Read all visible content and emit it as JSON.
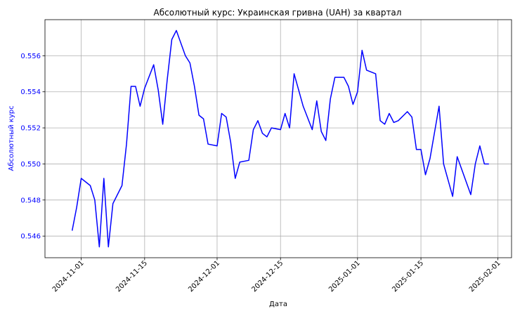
{
  "chart_data": {
    "type": "line",
    "title": "Абсолютный курс: Украинская гривна (UAH) за квартал",
    "xlabel": "Дата",
    "ylabel": "Абсолютный курс",
    "grid": true,
    "line_color": "#0000ff",
    "ylabel_color": "#0000ff",
    "xlim": [
      "2024-10-24",
      "2025-02-04"
    ],
    "ylim": [
      0.5448,
      0.558
    ],
    "x_ticks": [
      "2024-11-01",
      "2024-11-15",
      "2024-12-01",
      "2024-12-15",
      "2025-01-01",
      "2025-01-15",
      "2025-02-01"
    ],
    "y_ticks": [
      0.546,
      0.548,
      0.55,
      0.552,
      0.554,
      0.556
    ],
    "y_tick_labels": [
      "0.546",
      "0.548",
      "0.550",
      "0.552",
      "0.554",
      "0.556"
    ],
    "series": [
      {
        "x": [
          "2024-10-30",
          "2024-10-31",
          "2024-11-01",
          "2024-11-03",
          "2024-11-04",
          "2024-11-05",
          "2024-11-06",
          "2024-11-07",
          "2024-11-08",
          "2024-11-10",
          "2024-11-11",
          "2024-11-12",
          "2024-11-13",
          "2024-11-14",
          "2024-11-15",
          "2024-11-17",
          "2024-11-18",
          "2024-11-19",
          "2024-11-20",
          "2024-11-21",
          "2024-11-22",
          "2024-11-24",
          "2024-11-25",
          "2024-11-26",
          "2024-11-27",
          "2024-11-28",
          "2024-11-29",
          "2024-12-01",
          "2024-12-02",
          "2024-12-03",
          "2024-12-04",
          "2024-12-05",
          "2024-12-06",
          "2024-12-08",
          "2024-12-09",
          "2024-12-10",
          "2024-12-11",
          "2024-12-12",
          "2024-12-13",
          "2024-12-15",
          "2024-12-16",
          "2024-12-17",
          "2024-12-18",
          "2024-12-20",
          "2024-12-22",
          "2024-12-23",
          "2024-12-24",
          "2024-12-25",
          "2024-12-26",
          "2024-12-27",
          "2024-12-29",
          "2024-12-30",
          "2024-12-31",
          "2025-01-01",
          "2025-01-02",
          "2025-01-03",
          "2025-01-05",
          "2025-01-06",
          "2025-01-07",
          "2025-01-08",
          "2025-01-09",
          "2025-01-10",
          "2025-01-12",
          "2025-01-13",
          "2025-01-14",
          "2025-01-15",
          "2025-01-16",
          "2025-01-17",
          "2025-01-19",
          "2025-01-20",
          "2025-01-21",
          "2025-01-22",
          "2025-01-23",
          "2025-01-26",
          "2025-01-27",
          "2025-01-28",
          "2025-01-29",
          "2025-01-30"
        ],
        "y": [
          0.5463,
          0.5476,
          0.5492,
          0.5488,
          0.548,
          0.5454,
          0.5492,
          0.5454,
          0.5478,
          0.5488,
          0.5511,
          0.5543,
          0.5543,
          0.5532,
          0.5542,
          0.5555,
          0.5541,
          0.5522,
          0.5547,
          0.5569,
          0.5574,
          0.556,
          0.5556,
          0.5543,
          0.5527,
          0.5525,
          0.5511,
          0.551,
          0.5528,
          0.5526,
          0.5512,
          0.5492,
          0.5501,
          0.5502,
          0.5519,
          0.5524,
          0.5517,
          0.5515,
          0.552,
          0.5519,
          0.5528,
          0.552,
          0.555,
          0.5532,
          0.5519,
          0.5535,
          0.5518,
          0.5513,
          0.5536,
          0.5548,
          0.5548,
          0.5543,
          0.5533,
          0.554,
          0.5563,
          0.5552,
          0.555,
          0.5524,
          0.5522,
          0.5528,
          0.5523,
          0.5524,
          0.5529,
          0.5526,
          0.5508,
          0.5508,
          0.5494,
          0.5503,
          0.5532,
          0.55,
          0.5491,
          0.5482,
          0.5504,
          0.5483,
          0.55,
          0.551,
          0.55,
          0.55
        ]
      }
    ]
  }
}
